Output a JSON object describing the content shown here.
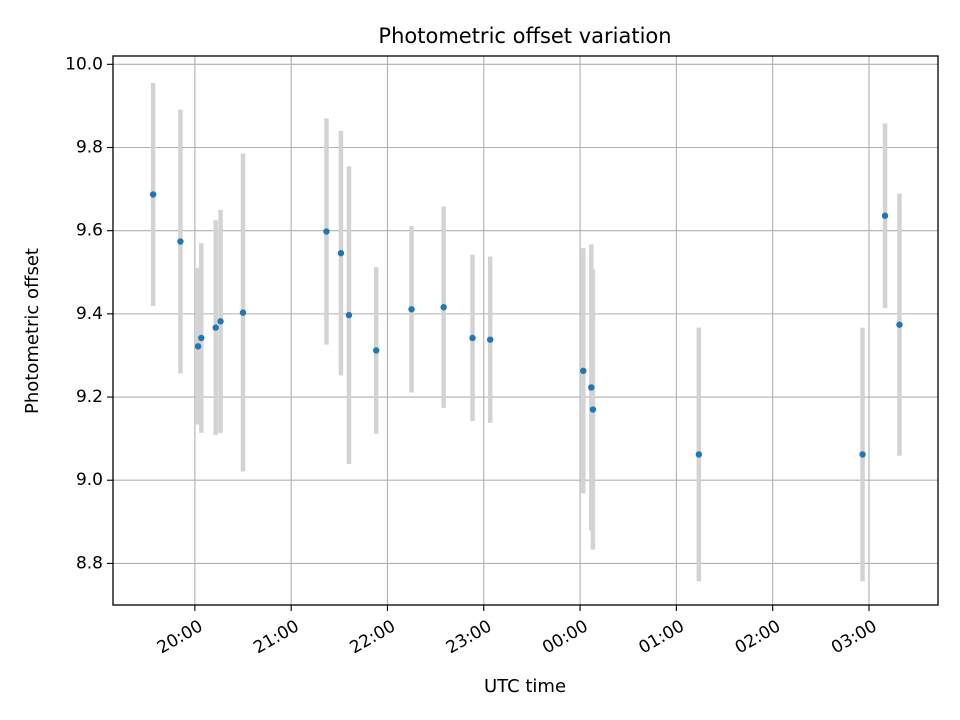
{
  "chart_data": {
    "type": "scatter",
    "title": "Photometric offset variation",
    "xlabel": "UTC time",
    "ylabel": "Photometric offset",
    "x_axis_type": "time",
    "xlim": [
      "19:09",
      "03:43"
    ],
    "ylim": [
      8.7,
      10.02
    ],
    "xticks": [
      {
        "time": "20:00",
        "label": "20:00"
      },
      {
        "time": "21:00",
        "label": "21:00"
      },
      {
        "time": "22:00",
        "label": "22:00"
      },
      {
        "time": "23:00",
        "label": "23:00"
      },
      {
        "time": "00:00",
        "label": "00:00"
      },
      {
        "time": "01:00",
        "label": "01:00"
      },
      {
        "time": "02:00",
        "label": "02:00"
      },
      {
        "time": "03:00",
        "label": "03:00"
      }
    ],
    "yticks": [
      8.8,
      9.0,
      9.2,
      9.4,
      9.6,
      9.8,
      10.0
    ],
    "ytick_labels": [
      "8.8",
      "9.0",
      "9.2",
      "9.4",
      "9.6",
      "9.8",
      "10.0"
    ],
    "grid": true,
    "legend": "none",
    "colors": {
      "marker": "#1f77b4",
      "errorbar": "#d3d3d3",
      "grid": "#b0b0b0",
      "frame": "#000000"
    },
    "points": [
      {
        "time": "19:34",
        "y": 9.687,
        "yerr": 0.268
      },
      {
        "time": "19:51",
        "y": 9.574,
        "yerr": 0.317
      },
      {
        "time": "20:02",
        "y": 9.322,
        "yerr": 0.188
      },
      {
        "time": "20:04",
        "y": 9.342,
        "yerr": 0.228
      },
      {
        "time": "20:13",
        "y": 9.367,
        "yerr": 0.258
      },
      {
        "time": "20:16",
        "y": 9.382,
        "yerr": 0.268
      },
      {
        "time": "20:30",
        "y": 9.403,
        "yerr": 0.382
      },
      {
        "time": "21:22",
        "y": 9.598,
        "yerr": 0.272
      },
      {
        "time": "21:31",
        "y": 9.546,
        "yerr": 0.294
      },
      {
        "time": "21:36",
        "y": 9.397,
        "yerr": 0.358
      },
      {
        "time": "21:53",
        "y": 9.312,
        "yerr": 0.2
      },
      {
        "time": "22:15",
        "y": 9.411,
        "yerr": 0.2
      },
      {
        "time": "22:35",
        "y": 9.416,
        "yerr": 0.242
      },
      {
        "time": "22:53",
        "y": 9.342,
        "yerr": 0.2
      },
      {
        "time": "23:04",
        "y": 9.338,
        "yerr": 0.2
      },
      {
        "time": "00:02",
        "y": 9.263,
        "yerr": 0.295
      },
      {
        "time": "00:07",
        "y": 9.223,
        "yerr": 0.344
      },
      {
        "time": "00:08",
        "y": 9.17,
        "yerr": 0.337
      },
      {
        "time": "01:14",
        "y": 9.062,
        "yerr": 0.305
      },
      {
        "time": "02:56",
        "y": 9.062,
        "yerr": 0.305
      },
      {
        "time": "03:10",
        "y": 9.636,
        "yerr": 0.222
      },
      {
        "time": "03:19",
        "y": 9.374,
        "yerr": 0.315
      }
    ]
  }
}
